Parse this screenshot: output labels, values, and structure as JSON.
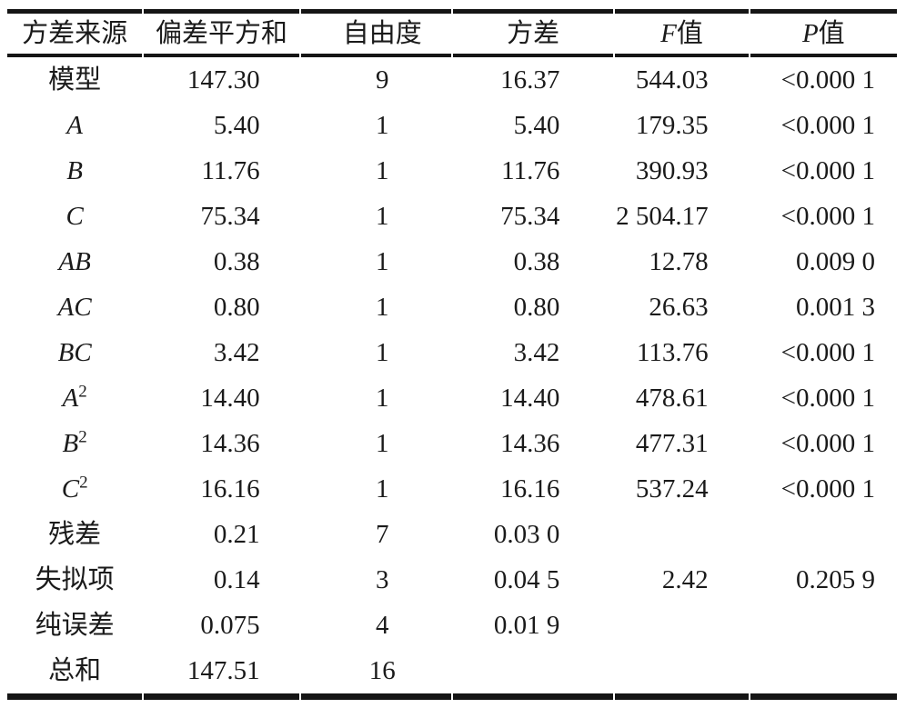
{
  "page": {
    "background_color": "#ffffff",
    "text_color": "#1a1a1a",
    "rule_color": "#151515"
  },
  "table": {
    "columns": [
      {
        "italic": "",
        "text": "方差来源"
      },
      {
        "italic": "",
        "text": "偏差平方和"
      },
      {
        "italic": "",
        "text": "自由度"
      },
      {
        "italic": "",
        "text": "方差"
      },
      {
        "italic": "F",
        "text": "值"
      },
      {
        "italic": "P",
        "text": "值"
      }
    ],
    "rows": [
      {
        "source": {
          "plain": "模型",
          "italic": "",
          "sup": ""
        },
        "values": [
          "147.30",
          "9",
          "16.37",
          "544.03",
          "<0.000 1"
        ]
      },
      {
        "source": {
          "plain": "",
          "italic": "A",
          "sup": ""
        },
        "values": [
          "5.40",
          "1",
          "5.40",
          "179.35",
          "<0.000 1"
        ]
      },
      {
        "source": {
          "plain": "",
          "italic": "B",
          "sup": ""
        },
        "values": [
          "11.76",
          "1",
          "11.76",
          "390.93",
          "<0.000 1"
        ]
      },
      {
        "source": {
          "plain": "",
          "italic": "C",
          "sup": ""
        },
        "values": [
          "75.34",
          "1",
          "75.34",
          "2 504.17",
          "<0.000 1"
        ]
      },
      {
        "source": {
          "plain": "",
          "italic": "AB",
          "sup": ""
        },
        "values": [
          "0.38",
          "1",
          "0.38",
          "12.78",
          "0.009 0"
        ]
      },
      {
        "source": {
          "plain": "",
          "italic": "AC",
          "sup": ""
        },
        "values": [
          "0.80",
          "1",
          "0.80",
          "26.63",
          "0.001 3"
        ]
      },
      {
        "source": {
          "plain": "",
          "italic": "BC",
          "sup": ""
        },
        "values": [
          "3.42",
          "1",
          "3.42",
          "113.76",
          "<0.000 1"
        ]
      },
      {
        "source": {
          "plain": "",
          "italic": "A",
          "sup": "2"
        },
        "values": [
          "14.40",
          "1",
          "14.40",
          "478.61",
          "<0.000 1"
        ]
      },
      {
        "source": {
          "plain": "",
          "italic": "B",
          "sup": "2"
        },
        "values": [
          "14.36",
          "1",
          "14.36",
          "477.31",
          "<0.000 1"
        ]
      },
      {
        "source": {
          "plain": "",
          "italic": "C",
          "sup": "2"
        },
        "values": [
          "16.16",
          "1",
          "16.16",
          "537.24",
          "<0.000 1"
        ]
      },
      {
        "source": {
          "plain": "残差",
          "italic": "",
          "sup": ""
        },
        "values": [
          "0.21",
          "7",
          "0.03 0",
          "",
          ""
        ]
      },
      {
        "source": {
          "plain": "失拟项",
          "italic": "",
          "sup": ""
        },
        "values": [
          "0.14",
          "3",
          "0.04 5",
          "2.42",
          "0.205 9"
        ]
      },
      {
        "source": {
          "plain": "纯误差",
          "italic": "",
          "sup": ""
        },
        "values": [
          "0.075",
          "4",
          "0.01 9",
          "",
          ""
        ]
      },
      {
        "source": {
          "plain": "总和",
          "italic": "",
          "sup": ""
        },
        "values": [
          "147.51",
          "16",
          "",
          "",
          ""
        ]
      }
    ]
  },
  "chart_data": {
    "type": "table",
    "columns": [
      "方差来源",
      "偏差平方和",
      "自由度",
      "方差",
      "F值",
      "P值"
    ],
    "rows": [
      [
        "模型",
        "147.30",
        "9",
        "16.37",
        "544.03",
        "<0.000 1"
      ],
      [
        "A",
        "5.40",
        "1",
        "5.40",
        "179.35",
        "<0.000 1"
      ],
      [
        "B",
        "11.76",
        "1",
        "11.76",
        "390.93",
        "<0.000 1"
      ],
      [
        "C",
        "75.34",
        "1",
        "75.34",
        "2 504.17",
        "<0.000 1"
      ],
      [
        "AB",
        "0.38",
        "1",
        "0.38",
        "12.78",
        "0.009 0"
      ],
      [
        "AC",
        "0.80",
        "1",
        "0.80",
        "26.63",
        "0.001 3"
      ],
      [
        "BC",
        "3.42",
        "1",
        "3.42",
        "113.76",
        "<0.000 1"
      ],
      [
        "A2",
        "14.40",
        "1",
        "14.40",
        "478.61",
        "<0.000 1"
      ],
      [
        "B2",
        "14.36",
        "1",
        "14.36",
        "477.31",
        "<0.000 1"
      ],
      [
        "C2",
        "16.16",
        "1",
        "16.16",
        "537.24",
        "<0.000 1"
      ],
      [
        "残差",
        "0.21",
        "7",
        "0.03 0",
        "",
        ""
      ],
      [
        "失拟项",
        "0.14",
        "3",
        "0.04 5",
        "2.42",
        "0.205 9"
      ],
      [
        "纯误差",
        "0.075",
        "4",
        "0.01 9",
        "",
        ""
      ],
      [
        "总和",
        "147.51",
        "16",
        "",
        "",
        ""
      ]
    ]
  }
}
